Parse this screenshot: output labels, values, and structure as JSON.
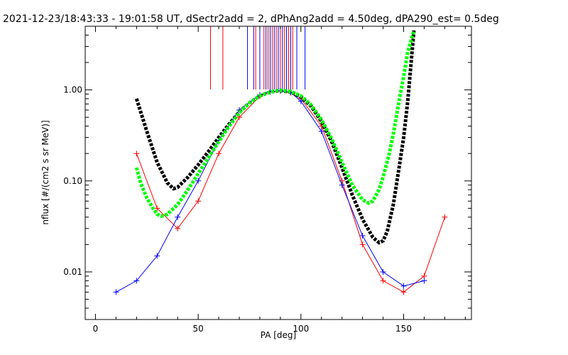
{
  "chart_data": {
    "type": "line",
    "title": "2021-12-23/18:43:33 - 19:01:58 UT, dSectr2add = 2, dPhAng2add = 4.50deg, dPA290_est=   0.5deg",
    "xlabel": "PA [deg]",
    "ylabel": "nflux [#/(cm2 s sr MeV)]",
    "xlim": [
      -5,
      183
    ],
    "ylim": [
      0.003,
      5
    ],
    "yscale": "log",
    "x_ticks": [
      0,
      50,
      100,
      150
    ],
    "x_tick_labels": [
      "0",
      "50",
      "100",
      "150"
    ],
    "y_ticks": [
      0.01,
      0.1,
      1.0
    ],
    "y_tick_labels": [
      "0.01",
      "0.10",
      "1.00"
    ],
    "grid": false,
    "legend": "none",
    "colors": {
      "red_series": "#ff0000",
      "blue_series": "#0000ff",
      "black_fit": "#000000",
      "green_fit": "#00ff00"
    },
    "series": [
      {
        "color": "#ff0000",
        "style": "lines-with-plus-markers",
        "x": [
          20,
          30,
          40,
          50,
          60,
          70,
          80,
          85,
          90,
          95,
          100,
          110,
          120,
          130,
          140,
          150,
          160,
          170
        ],
        "y": [
          0.2,
          0.05,
          0.03,
          0.06,
          0.2,
          0.5,
          0.85,
          0.95,
          0.97,
          0.93,
          0.8,
          0.4,
          0.1,
          0.02,
          0.008,
          0.006,
          0.009,
          0.04
        ]
      },
      {
        "color": "#0000ff",
        "style": "lines-with-plus-markers",
        "x": [
          10,
          20,
          30,
          40,
          50,
          60,
          70,
          80,
          85,
          90,
          95,
          100,
          110,
          120,
          130,
          140,
          150,
          160
        ],
        "y": [
          0.006,
          0.008,
          0.015,
          0.04,
          0.1,
          0.28,
          0.6,
          0.88,
          0.96,
          0.98,
          0.94,
          0.75,
          0.35,
          0.09,
          0.025,
          0.01,
          0.007,
          0.008
        ]
      }
    ],
    "fits": [
      {
        "color": "#000000",
        "style": "thick-dashed",
        "x": [
          20,
          25,
          30,
          35,
          38,
          40,
          45,
          50,
          55,
          60,
          65,
          70,
          75,
          80,
          85,
          90,
          95,
          100,
          105,
          110,
          115,
          120,
          125,
          130,
          135,
          138,
          140,
          142,
          145,
          148,
          150,
          152,
          155
        ],
        "y": [
          0.8,
          0.35,
          0.16,
          0.095,
          0.082,
          0.085,
          0.11,
          0.15,
          0.21,
          0.3,
          0.42,
          0.57,
          0.72,
          0.86,
          0.95,
          0.98,
          0.95,
          0.84,
          0.66,
          0.45,
          0.27,
          0.14,
          0.07,
          0.038,
          0.024,
          0.021,
          0.022,
          0.028,
          0.055,
          0.15,
          0.3,
          0.75,
          4.5
        ]
      },
      {
        "color": "#00ff00",
        "style": "thick-dashed",
        "x": [
          20,
          22,
          25,
          28,
          30,
          32,
          35,
          40,
          45,
          50,
          55,
          60,
          65,
          70,
          75,
          80,
          85,
          90,
          95,
          100,
          105,
          110,
          115,
          120,
          125,
          130,
          133,
          135,
          138,
          140,
          143,
          145,
          148,
          150,
          152,
          155
        ],
        "y": [
          0.14,
          0.095,
          0.065,
          0.05,
          0.043,
          0.041,
          0.043,
          0.055,
          0.08,
          0.12,
          0.18,
          0.27,
          0.4,
          0.56,
          0.72,
          0.86,
          0.95,
          0.99,
          0.96,
          0.86,
          0.68,
          0.47,
          0.29,
          0.16,
          0.09,
          0.062,
          0.057,
          0.06,
          0.08,
          0.11,
          0.2,
          0.33,
          0.8,
          1.4,
          2.6,
          4.5
        ]
      }
    ],
    "vertical_ticks": [
      {
        "color": "#ff0000",
        "x": [
          56,
          62,
          78,
          82,
          84,
          86,
          88,
          90,
          92,
          94,
          96
        ]
      },
      {
        "color": "#0000ff",
        "x": [
          74,
          77,
          80,
          83,
          85,
          87,
          89,
          91,
          93,
          95,
          98,
          102
        ]
      }
    ]
  }
}
